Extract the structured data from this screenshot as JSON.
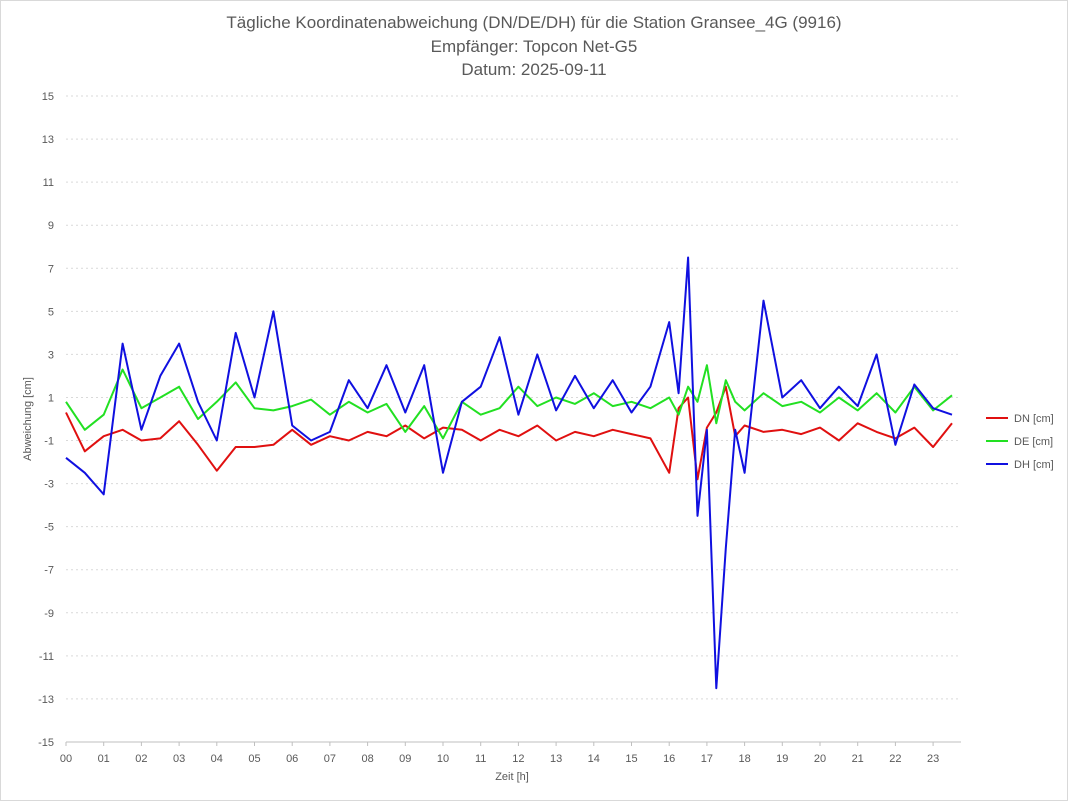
{
  "chart_data": {
    "type": "line",
    "title_lines": [
      "Tägliche Koordinatenabweichung (DN/DE/DH) für die Station Gransee_4G (9916)",
      "Empfänger: Topcon Net-G5",
      "Datum: 2025-09-11"
    ],
    "xlabel": "Zeit [h]",
    "ylabel": "Abweichung [cm]",
    "xlim": [
      0,
      23.5
    ],
    "ylim": [
      -15,
      15
    ],
    "x_ticks": [
      "00",
      "01",
      "02",
      "03",
      "04",
      "05",
      "06",
      "07",
      "08",
      "09",
      "10",
      "11",
      "12",
      "13",
      "14",
      "15",
      "16",
      "17",
      "18",
      "19",
      "20",
      "21",
      "22",
      "23"
    ],
    "y_ticks": [
      "15",
      "13",
      "11",
      "9",
      "7",
      "5",
      "3",
      "1",
      "-1",
      "-3",
      "-5",
      "-7",
      "-9",
      "-11",
      "-13",
      "-15"
    ],
    "legend_position": "right",
    "x": [
      0.0,
      0.5,
      1.0,
      1.5,
      2.0,
      2.5,
      3.0,
      3.5,
      4.0,
      4.5,
      5.0,
      5.5,
      6.0,
      6.5,
      7.0,
      7.5,
      8.0,
      8.5,
      9.0,
      9.5,
      10.0,
      10.5,
      11.0,
      11.5,
      12.0,
      12.5,
      13.0,
      13.5,
      14.0,
      14.5,
      15.0,
      15.5,
      16.0,
      16.25,
      16.5,
      16.75,
      17.0,
      17.25,
      17.5,
      17.75,
      18.0,
      18.5,
      19.0,
      19.5,
      20.0,
      20.5,
      21.0,
      21.5,
      22.0,
      22.5,
      23.0,
      23.5
    ],
    "series": [
      {
        "name": "DN [cm]",
        "color": "#e01010",
        "values": [
          0.3,
          -1.5,
          -0.8,
          -0.5,
          -1.0,
          -0.9,
          -0.1,
          -1.2,
          -2.4,
          -1.3,
          -1.3,
          -1.2,
          -0.5,
          -1.2,
          -0.8,
          -1.0,
          -0.6,
          -0.8,
          -0.3,
          -0.9,
          -0.4,
          -0.5,
          -1.0,
          -0.5,
          -0.8,
          -0.3,
          -1.0,
          -0.6,
          -0.8,
          -0.5,
          -0.7,
          -0.9,
          -2.5,
          0.5,
          1.0,
          -2.8,
          -0.4,
          0.3,
          1.5,
          -0.8,
          -0.3,
          -0.6,
          -0.5,
          -0.7,
          -0.4,
          -1.0,
          -0.2,
          -0.6,
          -0.9,
          -0.4,
          -1.3,
          -0.2
        ]
      },
      {
        "name": "DE [cm]",
        "color": "#22e022",
        "values": [
          0.8,
          -0.5,
          0.2,
          2.3,
          0.5,
          1.0,
          1.5,
          0.0,
          0.8,
          1.7,
          0.5,
          0.4,
          0.6,
          0.9,
          0.2,
          0.8,
          0.3,
          0.7,
          -0.6,
          0.6,
          -0.9,
          0.8,
          0.2,
          0.5,
          1.5,
          0.6,
          1.0,
          0.7,
          1.2,
          0.6,
          0.8,
          0.5,
          1.0,
          0.2,
          1.5,
          0.8,
          2.5,
          -0.2,
          1.8,
          0.8,
          0.4,
          1.2,
          0.6,
          0.8,
          0.3,
          1.0,
          0.4,
          1.2,
          0.3,
          1.5,
          0.4,
          1.1
        ]
      },
      {
        "name": "DH [cm]",
        "color": "#1010e0",
        "values": [
          -1.8,
          -2.5,
          -3.5,
          3.5,
          -0.5,
          2.0,
          3.5,
          0.8,
          -1.0,
          4.0,
          1.0,
          5.0,
          -0.3,
          -1.0,
          -0.6,
          1.8,
          0.5,
          2.5,
          0.3,
          2.5,
          -2.5,
          0.8,
          1.5,
          3.8,
          0.2,
          3.0,
          0.4,
          2.0,
          0.5,
          1.8,
          0.3,
          1.5,
          4.5,
          1.2,
          7.5,
          -4.5,
          -0.5,
          -12.5,
          -6.0,
          -0.5,
          -2.5,
          5.5,
          1.0,
          1.8,
          0.5,
          1.5,
          0.6,
          3.0,
          -1.2,
          1.6,
          0.5,
          0.2
        ]
      }
    ]
  }
}
